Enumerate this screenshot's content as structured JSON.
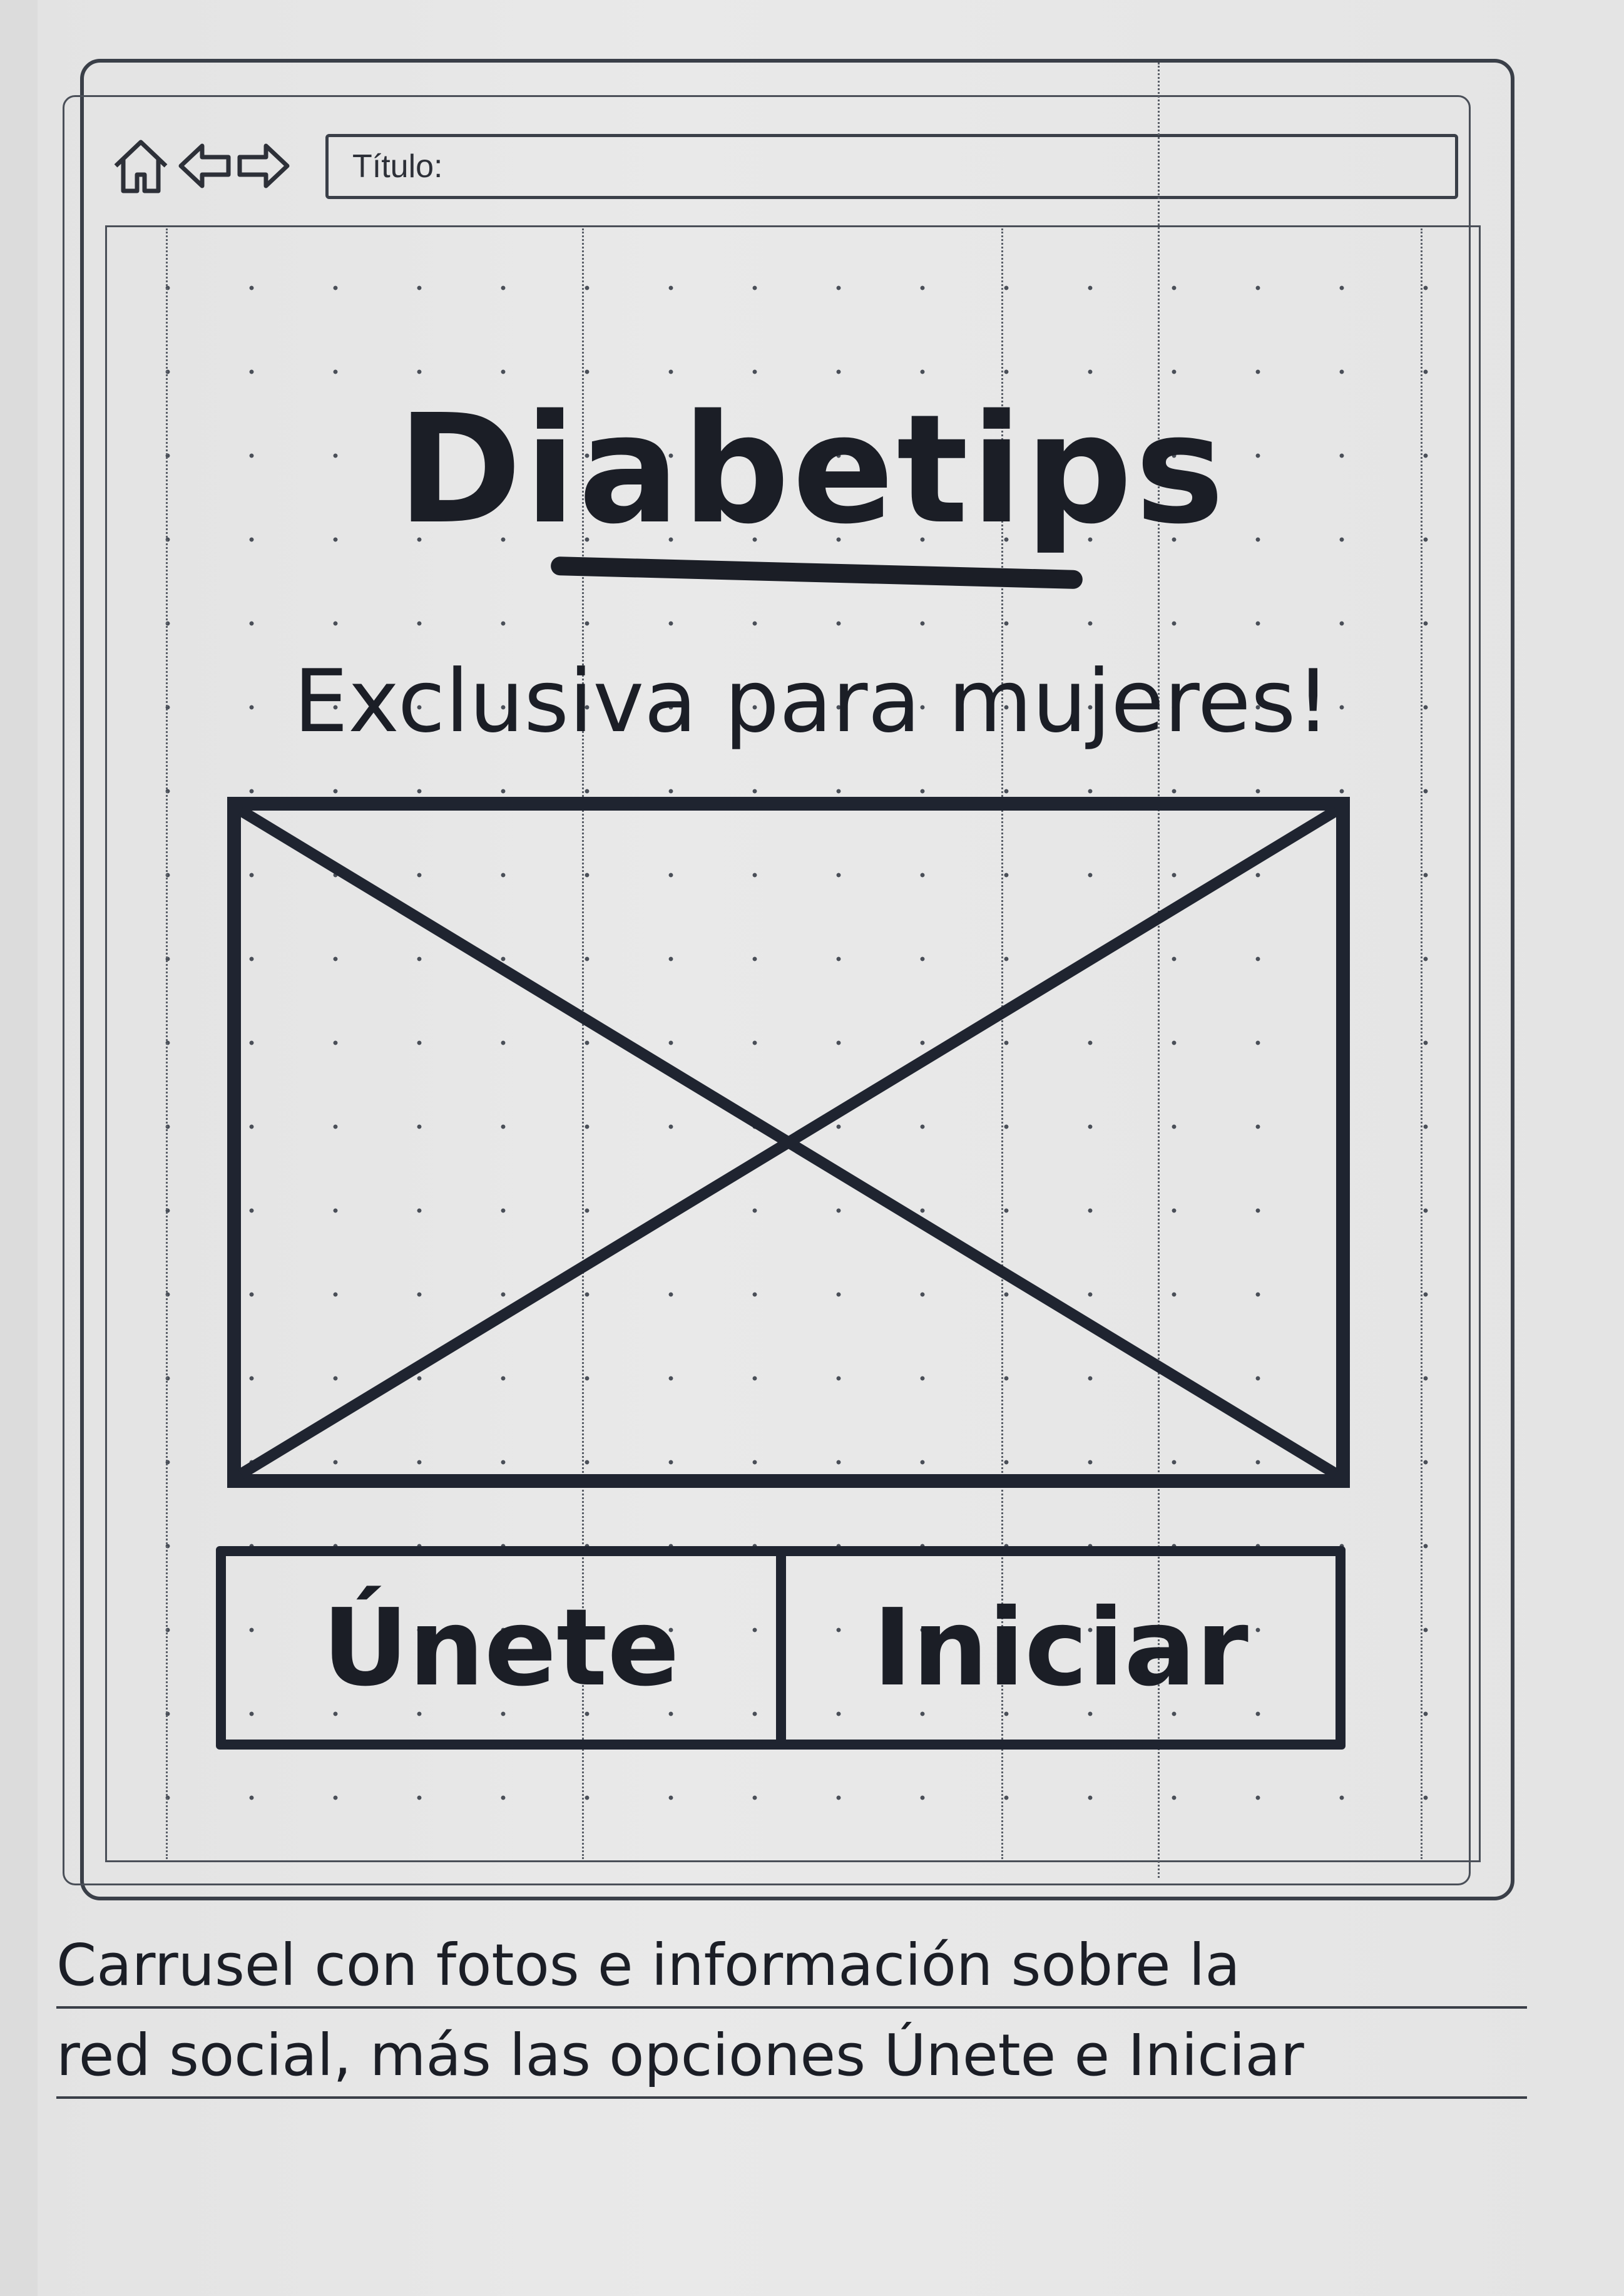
{
  "browser": {
    "title_label": "Título:",
    "icons": [
      "home-icon",
      "back-arrow-icon",
      "forward-arrow-icon"
    ]
  },
  "screen": {
    "brand": "Diabetips",
    "tagline": "Exclusiva para mujeres!",
    "image_placeholder": "image-placeholder-x",
    "buttons": {
      "join": "Únete",
      "start": "Iniciar"
    }
  },
  "note": {
    "line1": "Carrusel con fotos e información sobre la",
    "line2": "red social, más las opciones Únete e Iniciar"
  },
  "colors": {
    "ink": "#1b1e26",
    "frame": "#3a3f48",
    "paper": "#e6e6e6"
  }
}
